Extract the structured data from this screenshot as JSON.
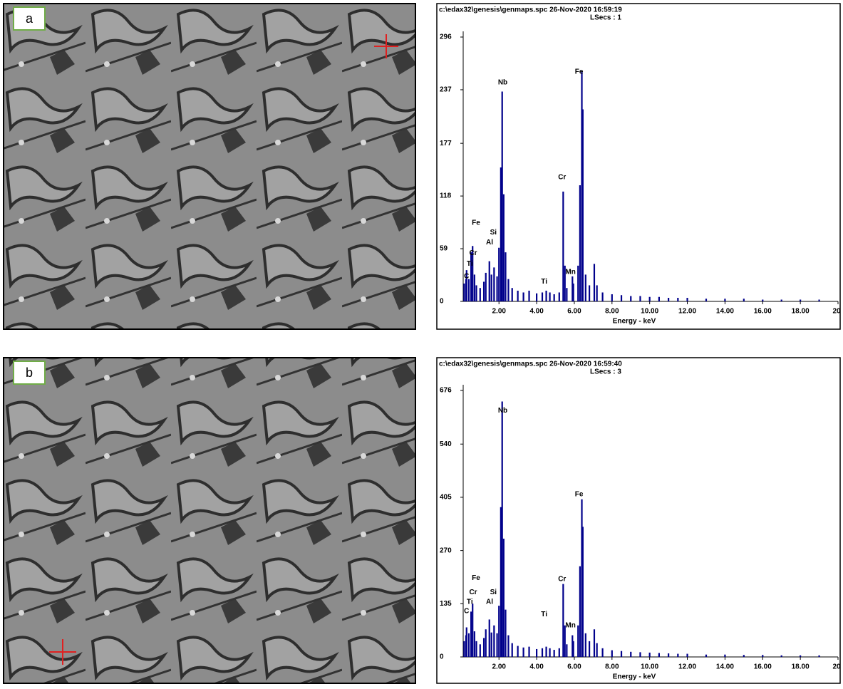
{
  "chart_data": [
    {
      "type": "spectrum",
      "panel_label": "a",
      "title": "c:\\edax32\\genesis\\genmaps.spc  26-Nov-2020 16:59:19",
      "subtitle": "LSecs : 1",
      "x_label": "Energy - keV",
      "color": "#00008b",
      "xlim": [
        0.1,
        20
      ],
      "ylim": [
        0,
        296
      ],
      "xticks": [
        {
          "value": 2,
          "label": "2.00"
        },
        {
          "value": 4,
          "label": "4.00"
        },
        {
          "value": 6,
          "label": "6.00"
        },
        {
          "value": 8,
          "label": "8.00"
        },
        {
          "value": 10,
          "label": "10.00"
        },
        {
          "value": 12,
          "label": "12.00"
        },
        {
          "value": 14,
          "label": "14.00"
        },
        {
          "value": 16,
          "label": "16.00"
        },
        {
          "value": 18,
          "label": "18.00"
        },
        20
      ],
      "yticks": [
        0,
        59,
        118,
        177,
        237,
        296
      ],
      "x": [
        0.15,
        0.25,
        0.28,
        0.4,
        0.52,
        0.6,
        0.7,
        0.8,
        1.0,
        1.2,
        1.3,
        1.49,
        1.6,
        1.74,
        1.9,
        2.0,
        2.1,
        2.17,
        2.25,
        2.35,
        2.5,
        2.7,
        3.0,
        3.3,
        3.6,
        4.0,
        4.3,
        4.51,
        4.7,
        4.93,
        5.2,
        5.41,
        5.5,
        5.6,
        5.9,
        5.95,
        6.2,
        6.3,
        6.4,
        6.45,
        6.6,
        6.8,
        7.06,
        7.2,
        7.5,
        8.0,
        8.5,
        9.0,
        9.5,
        10,
        10.5,
        11,
        11.5,
        12,
        13,
        14,
        15,
        16,
        17,
        18,
        19
      ],
      "values": [
        20,
        25,
        35,
        25,
        55,
        62,
        30,
        18,
        15,
        22,
        32,
        45,
        30,
        38,
        28,
        60,
        150,
        235,
        120,
        55,
        25,
        15,
        12,
        10,
        12,
        9,
        10,
        12,
        10,
        8,
        10,
        123,
        40,
        15,
        28,
        20,
        40,
        130,
        258,
        215,
        30,
        18,
        42,
        18,
        10,
        8,
        7,
        6,
        6,
        5,
        5,
        4,
        4,
        4,
        3,
        3,
        3,
        2,
        2,
        2,
        2
      ],
      "annotations": [
        {
          "text": "C",
          "x": 0.28,
          "y": 28
        },
        {
          "text": "Ti",
          "x": 0.45,
          "y": 42
        },
        {
          "text": "Cr",
          "x": 0.63,
          "y": 54
        },
        {
          "text": "Fe",
          "x": 0.78,
          "y": 88
        },
        {
          "text": "Al",
          "x": 1.5,
          "y": 66
        },
        {
          "text": "Si",
          "x": 1.7,
          "y": 77
        },
        {
          "text": "Nb",
          "x": 2.2,
          "y": 245
        },
        {
          "text": "Ti",
          "x": 4.4,
          "y": 22
        },
        {
          "text": "Cr",
          "x": 5.35,
          "y": 139
        },
        {
          "text": "Mn",
          "x": 5.8,
          "y": 33
        },
        {
          "text": "Fe",
          "x": 6.25,
          "y": 257
        }
      ]
    },
    {
      "type": "spectrum",
      "panel_label": "b",
      "title": "c:\\edax32\\genesis\\genmaps.spc  26-Nov-2020 16:59:40",
      "subtitle": "LSecs : 3",
      "x_label": "Energy - keV",
      "color": "#00008b",
      "xlim": [
        0.1,
        20
      ],
      "ylim": [
        0,
        676
      ],
      "xticks": [
        {
          "value": 2,
          "label": "2.00"
        },
        {
          "value": 4,
          "label": "4.00"
        },
        {
          "value": 6,
          "label": "6.00"
        },
        {
          "value": 8,
          "label": "8.00"
        },
        {
          "value": 10,
          "label": "10.00"
        },
        {
          "value": 12,
          "label": "12.00"
        },
        {
          "value": 14,
          "label": "14.00"
        },
        {
          "value": 16,
          "label": "16.00"
        },
        {
          "value": 18,
          "label": "18.00"
        },
        20
      ],
      "yticks": [
        0,
        135,
        270,
        405,
        540,
        676
      ],
      "x": [
        0.15,
        0.25,
        0.28,
        0.4,
        0.52,
        0.6,
        0.7,
        0.8,
        1.0,
        1.2,
        1.3,
        1.49,
        1.6,
        1.74,
        1.9,
        2.0,
        2.1,
        2.17,
        2.25,
        2.35,
        2.5,
        2.7,
        3.0,
        3.3,
        3.6,
        4.0,
        4.3,
        4.51,
        4.7,
        4.93,
        5.2,
        5.41,
        5.5,
        5.6,
        5.9,
        5.95,
        6.2,
        6.3,
        6.4,
        6.45,
        6.6,
        6.8,
        7.06,
        7.2,
        7.5,
        8.0,
        8.5,
        9.0,
        9.5,
        10,
        10.5,
        11,
        11.5,
        12,
        13,
        14,
        15,
        16,
        17,
        18,
        19
      ],
      "values": [
        40,
        55,
        75,
        60,
        115,
        135,
        65,
        40,
        32,
        48,
        70,
        95,
        62,
        80,
        60,
        130,
        380,
        648,
        300,
        120,
        55,
        35,
        28,
        24,
        26,
        20,
        22,
        26,
        22,
        18,
        22,
        185,
        80,
        32,
        55,
        40,
        80,
        230,
        400,
        330,
        60,
        40,
        70,
        35,
        22,
        17,
        15,
        13,
        12,
        11,
        10,
        9,
        8,
        8,
        6,
        6,
        5,
        5,
        4,
        4,
        4
      ],
      "annotations": [
        {
          "text": "C",
          "x": 0.28,
          "y": 116
        },
        {
          "text": "Ti",
          "x": 0.45,
          "y": 139
        },
        {
          "text": "Cr",
          "x": 0.63,
          "y": 164
        },
        {
          "text": "Fe",
          "x": 0.78,
          "y": 200
        },
        {
          "text": "Al",
          "x": 1.5,
          "y": 139
        },
        {
          "text": "Si",
          "x": 1.7,
          "y": 164
        },
        {
          "text": "Nb",
          "x": 2.2,
          "y": 625
        },
        {
          "text": "Ti",
          "x": 4.4,
          "y": 108
        },
        {
          "text": "Cr",
          "x": 5.35,
          "y": 197
        },
        {
          "text": "Mn",
          "x": 5.8,
          "y": 80
        },
        {
          "text": "Fe",
          "x": 6.25,
          "y": 412
        }
      ]
    }
  ]
}
